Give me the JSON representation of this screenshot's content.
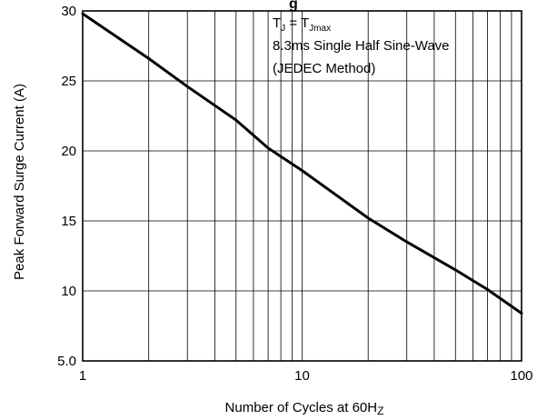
{
  "chart_data": {
    "type": "line",
    "title_fragment": "g",
    "xlabel": "Number of Cycles at 60H",
    "xlabel_sub": "Z",
    "ylabel": "Peak Forward Surge Current (A)",
    "x_scale": "log",
    "y_scale": "linear",
    "xlim": [
      1,
      100
    ],
    "ylim": [
      5,
      30
    ],
    "grid": true,
    "x_ticks": [
      "1",
      "10",
      "100"
    ],
    "y_ticks": [
      "5.0",
      "10",
      "15",
      "20",
      "25",
      "30"
    ],
    "annotation": {
      "line1_main": "T",
      "line1_sub1": "J",
      "line1_mid": " = T",
      "line1_sub2": "Jmax",
      "line2": "8.3ms Single Half Sine-Wave",
      "line3": "(JEDEC Method)"
    },
    "series": [
      {
        "x": [
          1,
          2,
          3,
          5,
          7,
          10,
          20,
          30,
          50,
          70,
          100
        ],
        "y": [
          29.8,
          26.6,
          24.6,
          22.2,
          20.2,
          18.6,
          15.2,
          13.5,
          11.5,
          10.1,
          8.4
        ]
      }
    ]
  }
}
